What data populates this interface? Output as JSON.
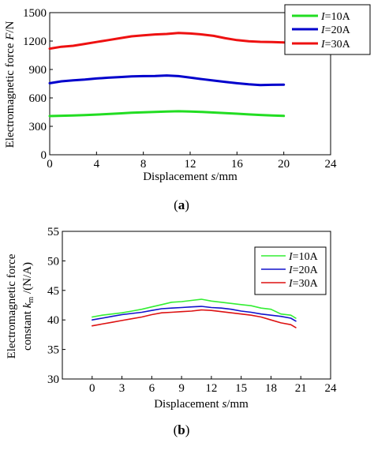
{
  "chart_data": [
    {
      "type": "line",
      "caption": "(a)",
      "caption_bold": "a",
      "xlabel": "Displacement s/mm",
      "ylabel": "Electromagnetic force F/N",
      "xlim": [
        0,
        24
      ],
      "ylim": [
        0,
        1500
      ],
      "xticks": [
        "0",
        "4",
        "8",
        "12",
        "16",
        "20",
        "24"
      ],
      "yticks": [
        "0",
        "300",
        "600",
        "900",
        "1200",
        "1500"
      ],
      "grid": false,
      "legend_position": "top-right",
      "series": [
        {
          "name": "I=10A",
          "color": "#22dd22",
          "x": [
            0,
            1,
            2,
            3,
            4,
            5,
            6,
            7,
            8,
            9,
            10,
            11,
            12,
            13,
            14,
            15,
            16,
            17,
            18,
            19,
            20
          ],
          "y": [
            408,
            412,
            415,
            419,
            424,
            430,
            437,
            443,
            448,
            452,
            456,
            459,
            457,
            452,
            446,
            440,
            433,
            426,
            420,
            414,
            410
          ]
        },
        {
          "name": "I=20A",
          "color": "#0000cc",
          "x": [
            0,
            1,
            2,
            3,
            4,
            5,
            6,
            7,
            8,
            9,
            10,
            11,
            12,
            13,
            14,
            15,
            16,
            17,
            18,
            19,
            20
          ],
          "y": [
            755,
            775,
            785,
            793,
            805,
            813,
            820,
            827,
            830,
            832,
            837,
            830,
            815,
            798,
            783,
            768,
            755,
            743,
            735,
            738,
            740
          ]
        },
        {
          "name": "I=30A",
          "color": "#ee1111",
          "x": [
            0,
            1,
            2,
            3,
            4,
            5,
            6,
            7,
            8,
            9,
            10,
            11,
            12,
            13,
            14,
            15,
            16,
            17,
            18,
            19,
            20
          ],
          "y": [
            1120,
            1140,
            1150,
            1170,
            1190,
            1210,
            1230,
            1250,
            1260,
            1270,
            1275,
            1285,
            1280,
            1270,
            1255,
            1230,
            1210,
            1198,
            1192,
            1190,
            1185
          ]
        }
      ]
    },
    {
      "type": "line",
      "caption": "(b)",
      "caption_bold": "b",
      "xlabel": "Displacement s/mm",
      "ylabel_line1": "Electromagnetic force",
      "ylabel_line2": "constant km /(N/A)",
      "xlim": [
        -3,
        24
      ],
      "ylim": [
        30,
        55
      ],
      "xticks": [
        "0",
        "3",
        "6",
        "9",
        "12",
        "15",
        "18",
        "21",
        "24"
      ],
      "yticks": [
        "30",
        "35",
        "40",
        "45",
        "50",
        "55"
      ],
      "grid": false,
      "legend_position": "top-right",
      "series": [
        {
          "name": "I=10A",
          "color": "#33ee33",
          "x": [
            0,
            1,
            2,
            3,
            4,
            5,
            6,
            7,
            8,
            9,
            10,
            11,
            12,
            13,
            14,
            15,
            16,
            17,
            18,
            19,
            20,
            20.5
          ],
          "y": [
            40.5,
            40.8,
            41.0,
            41.2,
            41.5,
            41.8,
            42.2,
            42.6,
            43.0,
            43.1,
            43.3,
            43.5,
            43.2,
            43.0,
            42.8,
            42.6,
            42.4,
            42.0,
            41.8,
            41.0,
            40.8,
            40.3
          ]
        },
        {
          "name": "I=20A",
          "color": "#1111cc",
          "x": [
            0,
            1,
            2,
            3,
            4,
            5,
            6,
            7,
            8,
            9,
            10,
            11,
            12,
            13,
            14,
            15,
            16,
            17,
            18,
            19,
            20,
            20.5
          ],
          "y": [
            40.0,
            40.3,
            40.6,
            40.9,
            41.1,
            41.3,
            41.6,
            41.9,
            42.0,
            42.1,
            42.2,
            42.3,
            42.1,
            42.0,
            41.8,
            41.5,
            41.3,
            41.0,
            40.8,
            40.6,
            40.3,
            39.8
          ]
        },
        {
          "name": "I=30A",
          "color": "#dd1111",
          "x": [
            0,
            1,
            2,
            3,
            4,
            5,
            6,
            7,
            8,
            9,
            10,
            11,
            12,
            13,
            14,
            15,
            16,
            17,
            18,
            19,
            20,
            20.5
          ],
          "y": [
            39.0,
            39.3,
            39.6,
            39.9,
            40.2,
            40.5,
            40.9,
            41.2,
            41.3,
            41.4,
            41.5,
            41.7,
            41.6,
            41.4,
            41.2,
            41.0,
            40.8,
            40.5,
            40.0,
            39.5,
            39.2,
            38.7
          ]
        }
      ]
    }
  ]
}
